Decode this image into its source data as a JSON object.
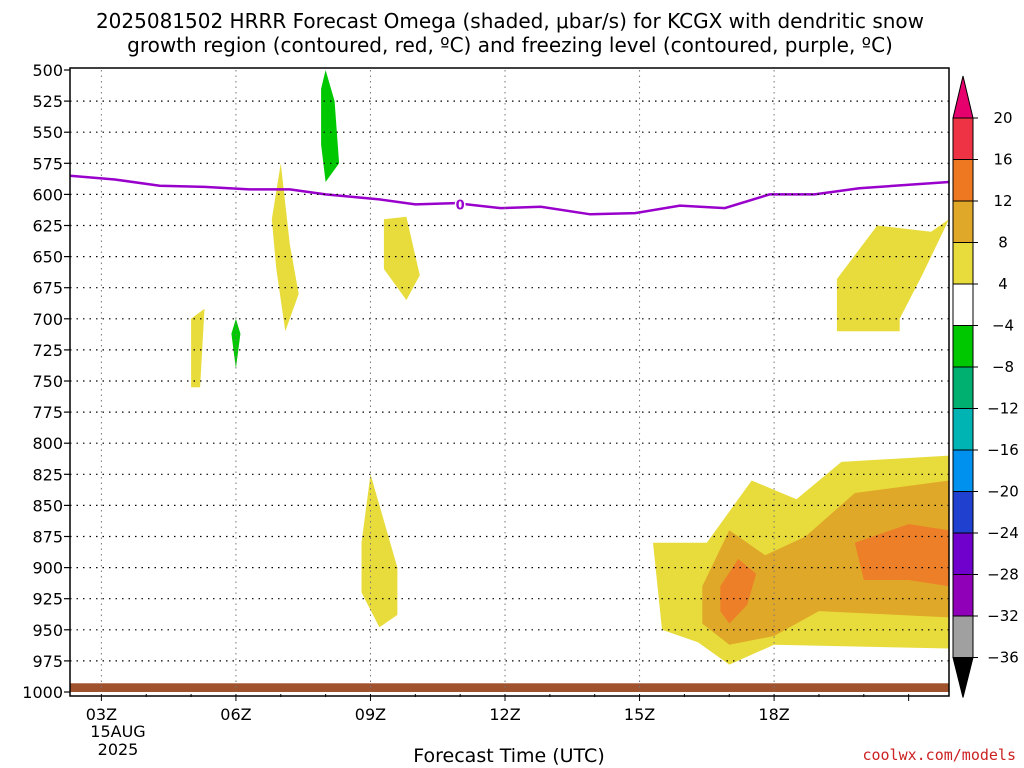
{
  "chart_data": {
    "type": "contour",
    "title_line1": "2025081502 HRRR Forecast Omega (shaded, μbar/s) for KCGX with dendritic snow",
    "title_line2": "growth region (contoured, red, ºC) and freezing level (contoured, purple, ºC)",
    "xlabel": "Forecast Time (UTC)",
    "credit": "coolwx.com/models",
    "date_line": "15AUG",
    "year_line": "2025",
    "x_range_hours": [
      2.3,
      21.9
    ],
    "x_ticks": [
      {
        "hour": 3,
        "label": "03Z"
      },
      {
        "hour": 6,
        "label": "06Z"
      },
      {
        "hour": 9,
        "label": "09Z"
      },
      {
        "hour": 12,
        "label": "12Z"
      },
      {
        "hour": 15,
        "label": "15Z"
      },
      {
        "hour": 18,
        "label": "18Z"
      }
    ],
    "y_ticks": [
      500,
      525,
      550,
      575,
      600,
      625,
      650,
      675,
      700,
      725,
      750,
      775,
      800,
      825,
      850,
      875,
      900,
      925,
      950,
      975,
      1000
    ],
    "y_range_hPa": [
      500,
      1000
    ],
    "y_reversed": true,
    "grid": true,
    "freezing_level": {
      "label": "0",
      "color": "#9900cc",
      "label_point": {
        "hour": 11.0,
        "p": 608
      },
      "points": [
        [
          2.3,
          585
        ],
        [
          3.3,
          588
        ],
        [
          4.3,
          593
        ],
        [
          5.3,
          594
        ],
        [
          6.3,
          596
        ],
        [
          7.2,
          596
        ],
        [
          8.0,
          600
        ],
        [
          9.2,
          604
        ],
        [
          10.0,
          608
        ],
        [
          10.9,
          607
        ],
        [
          11.9,
          611
        ],
        [
          12.8,
          610
        ],
        [
          13.9,
          616
        ],
        [
          14.9,
          615
        ],
        [
          15.9,
          609
        ],
        [
          16.9,
          611
        ],
        [
          17.9,
          600
        ],
        [
          18.9,
          600
        ],
        [
          19.9,
          595
        ],
        [
          21.9,
          590
        ]
      ]
    },
    "omega_regions": [
      {
        "level": "4 to 8",
        "color": "#e8dc3c",
        "points": [
          [
            5.0,
            700
          ],
          [
            5.3,
            692
          ],
          [
            5.2,
            755
          ],
          [
            5.0,
            755
          ]
        ]
      },
      {
        "level": "-8 to -4",
        "color": "#00c800",
        "points": [
          [
            8.0,
            500
          ],
          [
            8.2,
            525
          ],
          [
            8.3,
            575
          ],
          [
            8.0,
            590
          ],
          [
            7.9,
            560
          ],
          [
            7.9,
            515
          ]
        ]
      },
      {
        "level": "-8 to -4",
        "color": "#00c800",
        "points": [
          [
            6.0,
            700
          ],
          [
            6.1,
            712
          ],
          [
            6.0,
            740
          ],
          [
            5.9,
            712
          ]
        ]
      },
      {
        "level": "4 to 8",
        "color": "#e8dc3c",
        "points": [
          [
            7.0,
            575
          ],
          [
            7.2,
            640
          ],
          [
            7.4,
            680
          ],
          [
            7.1,
            710
          ],
          [
            6.9,
            660
          ],
          [
            6.8,
            620
          ]
        ]
      },
      {
        "level": "4 to 8",
        "color": "#e8dc3c",
        "points": [
          [
            9.3,
            620
          ],
          [
            9.8,
            618
          ],
          [
            10.1,
            665
          ],
          [
            9.8,
            685
          ],
          [
            9.3,
            660
          ]
        ]
      },
      {
        "level": "4 to 8",
        "color": "#e8dc3c",
        "points": [
          [
            9.0,
            825
          ],
          [
            9.6,
            900
          ],
          [
            9.6,
            938
          ],
          [
            9.2,
            948
          ],
          [
            8.8,
            920
          ],
          [
            8.8,
            880
          ]
        ]
      },
      {
        "level": "4 to 8",
        "color": "#e8dc3c",
        "points": [
          [
            21.5,
            630
          ],
          [
            21.9,
            620
          ],
          [
            21.3,
            665
          ],
          [
            20.8,
            700
          ],
          [
            20.8,
            710
          ],
          [
            19.4,
            710
          ],
          [
            19.4,
            668
          ],
          [
            20.3,
            625
          ]
        ]
      },
      {
        "level": "4 to 8",
        "color": "#e8dc3c",
        "points": [
          [
            15.3,
            880
          ],
          [
            16.5,
            880
          ],
          [
            17.5,
            830
          ],
          [
            18.5,
            845
          ],
          [
            19.5,
            815
          ],
          [
            21.9,
            810
          ],
          [
            21.9,
            965
          ],
          [
            18.0,
            962
          ],
          [
            17.0,
            978
          ],
          [
            16.3,
            960
          ],
          [
            15.5,
            950
          ]
        ]
      },
      {
        "level": "8 to 12",
        "color": "#e0a828",
        "points": [
          [
            16.4,
            915
          ],
          [
            17.0,
            870
          ],
          [
            17.8,
            890
          ],
          [
            18.7,
            875
          ],
          [
            19.8,
            840
          ],
          [
            21.9,
            830
          ],
          [
            21.9,
            940
          ],
          [
            19.0,
            935
          ],
          [
            18.0,
            955
          ],
          [
            17.0,
            962
          ],
          [
            16.4,
            945
          ]
        ]
      },
      {
        "level": "12 to 16",
        "color": "#ec7f28",
        "points": [
          [
            16.8,
            915
          ],
          [
            17.2,
            893
          ],
          [
            17.6,
            905
          ],
          [
            17.4,
            930
          ],
          [
            17.0,
            945
          ],
          [
            16.8,
            935
          ]
        ]
      },
      {
        "level": "12 to 16",
        "color": "#ec7f28",
        "points": [
          [
            19.8,
            880
          ],
          [
            21.0,
            865
          ],
          [
            21.9,
            870
          ],
          [
            21.9,
            915
          ],
          [
            21.0,
            910
          ],
          [
            20.0,
            910
          ]
        ]
      }
    ],
    "ground": {
      "color": "#a0522d",
      "p_top": 993
    },
    "colorbar": {
      "ticks": [
        "20",
        "16",
        "12",
        "8",
        "4",
        "−4",
        "−8",
        "−12",
        "−16",
        "−20",
        "−24",
        "−28",
        "−32",
        "−36"
      ],
      "colors": [
        "#ee3344",
        "#ee7722",
        "#e0a828",
        "#e8dc3c",
        "#ffffff",
        "#00c800",
        "#00b070",
        "#00b4b4",
        "#0090ee",
        "#2040d0",
        "#7000cc",
        "#9000b8",
        "#a0a0a0"
      ],
      "top_arrow": "#e6006e",
      "bottom_arrow": "#000000"
    }
  }
}
